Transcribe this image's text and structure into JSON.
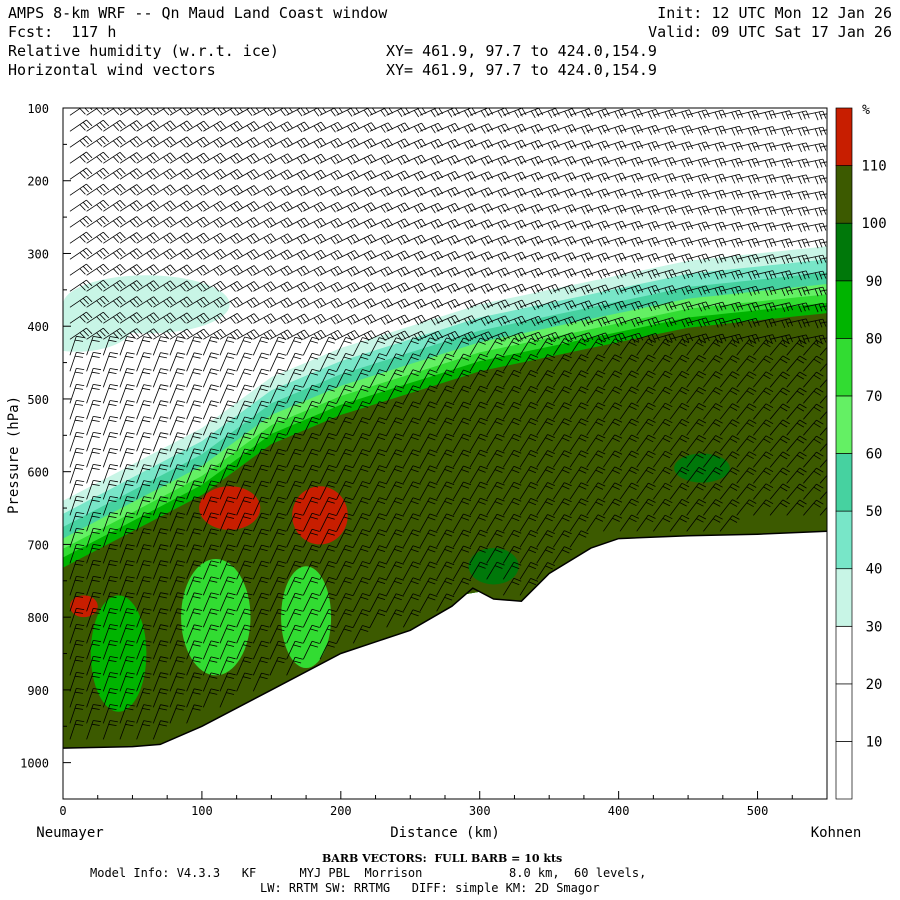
{
  "header": {
    "title": "AMPS 8-km WRF -- Qn Maud Land Coast window",
    "forecast": "Fcst:  117 h",
    "field1": "Relative humidity (w.r.t. ice)",
    "field2": "Horizontal wind vectors",
    "init": "Init: 12 UTC Mon 12 Jan 26",
    "valid": "Valid: 09 UTC Sat 17 Jan 26",
    "xy1": "XY= 461.9, 97.7 to 424.0,154.9",
    "xy2": "XY= 461.9, 97.7 to 424.0,154.9"
  },
  "chart_data": {
    "type": "heatmap",
    "title": "Relative humidity (w.r.t. ice)",
    "xlabel": "Distance (km)",
    "ylabel": "Pressure (hPa)",
    "xlim": [
      0,
      550
    ],
    "ylim": [
      1050,
      100
    ],
    "y_scale": "linear-inverted",
    "x_ticks": [
      0,
      100,
      200,
      300,
      400,
      500
    ],
    "y_ticks": [
      100,
      200,
      300,
      400,
      500,
      600,
      700,
      800,
      900,
      1000
    ],
    "left_label": "Neumayer",
    "right_label": "Kohnen",
    "colorbar": {
      "unit": "%",
      "levels": [
        10,
        20,
        30,
        40,
        50,
        60,
        70,
        80,
        90,
        100,
        110
      ],
      "colors": [
        "#ffffff",
        "#ffffff",
        "#ffffff",
        "#c8f5e6",
        "#78e6c8",
        "#46d2a0",
        "#64f064",
        "#32dc32",
        "#00b400",
        "#00780a",
        "#3c5a00",
        "#c81e00"
      ]
    },
    "terrain": [
      [
        0,
        980
      ],
      [
        50,
        978
      ],
      [
        70,
        975
      ],
      [
        100,
        950
      ],
      [
        150,
        900
      ],
      [
        200,
        850
      ],
      [
        250,
        818
      ],
      [
        280,
        785
      ],
      [
        295,
        760
      ],
      [
        310,
        775
      ],
      [
        330,
        778
      ],
      [
        350,
        740
      ],
      [
        380,
        705
      ],
      [
        400,
        692
      ],
      [
        450,
        688
      ],
      [
        500,
        686
      ],
      [
        550,
        682
      ]
    ],
    "moist_layer_top": [
      [
        0,
        640
      ],
      [
        50,
        590
      ],
      [
        100,
        540
      ],
      [
        150,
        470
      ],
      [
        200,
        430
      ],
      [
        250,
        400
      ],
      [
        300,
        370
      ],
      [
        350,
        350
      ],
      [
        400,
        330
      ],
      [
        450,
        310
      ],
      [
        500,
        300
      ],
      [
        550,
        290
      ]
    ],
    "barb_note": "BARB VECTORS:  FULL BARB = 10 kts"
  },
  "footer": {
    "model_line": "Model Info: V4.3.3   KF      MYJ PBL  Morrison            8.0 km,  60 levels,",
    "physics_line": "LW: RRTM SW: RRTMG   DIFF: simple KM: 2D Smagor"
  }
}
